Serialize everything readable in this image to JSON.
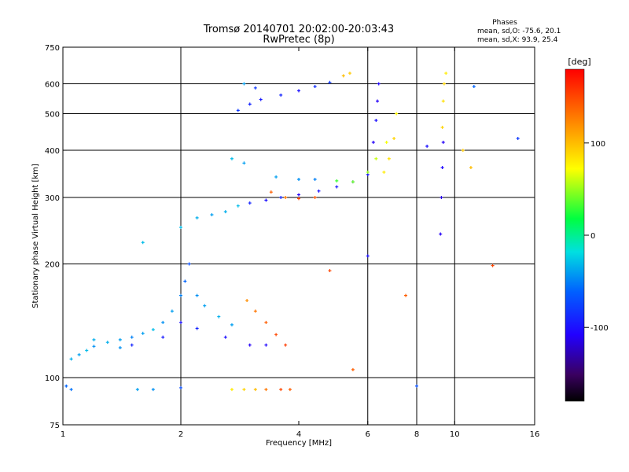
{
  "chart_data": {
    "type": "scatter",
    "title": "Tromsø 20140701 20:02:00-20:03:43",
    "subtitle": "RwPretec (8p)",
    "xlabel": "Frequency [MHz]",
    "ylabel": "Stationary phase Virtual Height [km]",
    "x_scale": "log",
    "y_scale": "log",
    "xlim": [
      1,
      16
    ],
    "ylim": [
      75,
      750
    ],
    "x_ticks": [
      "1",
      "2",
      "4",
      "6",
      "8",
      "10",
      "16"
    ],
    "y_ticks": [
      "75",
      "100",
      "200",
      "300",
      "400",
      "500",
      "600",
      "750"
    ],
    "x_gridlines": [
      2,
      6,
      8,
      10
    ],
    "y_gridlines": [
      100,
      200,
      300,
      400,
      500,
      600
    ],
    "stats": {
      "heading": "Phases",
      "line_o": "mean, sd,O: -75.6, 20.1",
      "line_x": "mean, sd,X:  93.9, 25.4"
    },
    "colorbar": {
      "label": "[deg]",
      "range": [
        -180,
        180
      ],
      "ticks": [
        "100",
        "0",
        "-100"
      ],
      "tick_values": [
        100,
        0,
        -100
      ]
    },
    "clusters": [
      {
        "name": "low-band-cyan",
        "points": [
          [
            1.05,
            112,
            -35
          ],
          [
            1.1,
            115,
            -40
          ],
          [
            1.15,
            118,
            -30
          ],
          [
            1.2,
            121,
            -45
          ],
          [
            1.3,
            124,
            -35
          ],
          [
            1.4,
            126,
            -40
          ],
          [
            1.5,
            128,
            -50
          ],
          [
            1.6,
            131,
            -40
          ],
          [
            1.7,
            134,
            -30
          ],
          [
            1.8,
            140,
            -45
          ],
          [
            1.9,
            150,
            -40
          ],
          [
            2.0,
            165,
            -50
          ],
          [
            2.05,
            180,
            -60
          ],
          [
            2.1,
            200,
            -70
          ],
          [
            2.2,
            165,
            -45
          ],
          [
            2.3,
            155,
            -40
          ],
          [
            2.5,
            145,
            -35
          ],
          [
            2.7,
            138,
            -40
          ]
        ]
      },
      {
        "name": "low-band-blue",
        "points": [
          [
            1.5,
            122,
            -90
          ],
          [
            1.8,
            128,
            -95
          ],
          [
            2.0,
            140,
            -100
          ],
          [
            2.2,
            135,
            -90
          ],
          [
            2.6,
            128,
            -100
          ],
          [
            3.0,
            122,
            -110
          ],
          [
            3.3,
            122,
            -105
          ]
        ]
      },
      {
        "name": "low-band-orange",
        "points": [
          [
            2.95,
            160,
            120
          ],
          [
            3.1,
            150,
            130
          ],
          [
            3.3,
            140,
            140
          ],
          [
            3.5,
            130,
            150
          ],
          [
            3.7,
            122,
            155
          ]
        ]
      },
      {
        "name": "e-layer-trace",
        "points": [
          [
            1.02,
            95,
            -60
          ],
          [
            1.05,
            93,
            -55
          ],
          [
            1.55,
            93,
            -40
          ],
          [
            1.7,
            93,
            -45
          ],
          [
            2.0,
            94,
            -70
          ],
          [
            2.7,
            93,
            80
          ],
          [
            2.9,
            93,
            90
          ],
          [
            3.1,
            93,
            100
          ],
          [
            3.3,
            93,
            130
          ],
          [
            3.6,
            93,
            150
          ],
          [
            3.8,
            93,
            140
          ]
        ]
      },
      {
        "name": "f1-lower-trace",
        "points": [
          [
            2.0,
            250,
            -30
          ],
          [
            2.2,
            265,
            -35
          ],
          [
            2.4,
            270,
            -40
          ],
          [
            2.6,
            275,
            -35
          ],
          [
            2.8,
            285,
            -30
          ],
          [
            3.0,
            290,
            -90
          ],
          [
            3.3,
            295,
            -100
          ],
          [
            3.6,
            300,
            -90
          ],
          [
            4.0,
            305,
            -110
          ],
          [
            4.5,
            312,
            -100
          ],
          [
            5.0,
            320,
            -95
          ],
          [
            5.5,
            330,
            -100
          ],
          [
            6.0,
            345,
            -95
          ]
        ]
      },
      {
        "name": "f1-orange-trace",
        "points": [
          [
            3.4,
            310,
            140
          ],
          [
            3.7,
            300,
            130
          ],
          [
            4.0,
            298,
            150
          ],
          [
            4.4,
            300,
            145
          ]
        ]
      },
      {
        "name": "f2-mid-trace",
        "points": [
          [
            2.7,
            380,
            -30
          ],
          [
            2.9,
            370,
            -40
          ],
          [
            3.5,
            340,
            -40
          ],
          [
            4.0,
            335,
            -45
          ],
          [
            4.4,
            335,
            -50
          ],
          [
            5.0,
            332,
            30
          ],
          [
            5.5,
            330,
            40
          ],
          [
            6.0,
            350,
            50
          ],
          [
            6.3,
            380,
            60
          ],
          [
            6.7,
            420,
            70
          ]
        ]
      },
      {
        "name": "f2-upper-trace",
        "points": [
          [
            2.8,
            510,
            -80
          ],
          [
            3.0,
            530,
            -90
          ],
          [
            3.2,
            545,
            -95
          ],
          [
            3.6,
            560,
            -90
          ],
          [
            4.0,
            575,
            -100
          ],
          [
            4.4,
            590,
            -85
          ],
          [
            4.8,
            605,
            -80
          ],
          [
            5.2,
            630,
            100
          ],
          [
            5.4,
            640,
            95
          ]
        ]
      },
      {
        "name": "steep-blue-columns",
        "points": [
          [
            6.2,
            420,
            -110
          ],
          [
            6.3,
            480,
            -100
          ],
          [
            6.35,
            540,
            -110
          ],
          [
            6.4,
            600,
            -105
          ],
          [
            9.2,
            240,
            -110
          ],
          [
            9.25,
            300,
            -115
          ],
          [
            9.3,
            360,
            -105
          ],
          [
            9.35,
            420,
            -110
          ]
        ]
      },
      {
        "name": "yellow-columns",
        "points": [
          [
            6.6,
            350,
            80
          ],
          [
            6.8,
            380,
            85
          ],
          [
            7.0,
            430,
            90
          ],
          [
            7.1,
            500,
            75
          ],
          [
            9.3,
            460,
            90
          ],
          [
            9.35,
            540,
            85
          ],
          [
            9.4,
            600,
            90
          ],
          [
            9.5,
            640,
            80
          ]
        ]
      },
      {
        "name": "scattered-misc",
        "points": [
          [
            1.6,
            228,
            -30
          ],
          [
            1.4,
            120,
            -45
          ],
          [
            1.2,
            126,
            -35
          ],
          [
            2.9,
            600,
            -40
          ],
          [
            3.1,
            585,
            -80
          ],
          [
            4.8,
            192,
            150
          ],
          [
            5.5,
            105,
            140
          ],
          [
            6.0,
            210,
            -100
          ],
          [
            7.5,
            165,
            140
          ],
          [
            8.5,
            410,
            -100
          ],
          [
            10.5,
            400,
            95
          ],
          [
            11.2,
            590,
            -60
          ],
          [
            12.5,
            198,
            150
          ],
          [
            14.5,
            430,
            -80
          ],
          [
            8.0,
            95,
            -70
          ],
          [
            11.0,
            360,
            100
          ]
        ]
      }
    ]
  }
}
